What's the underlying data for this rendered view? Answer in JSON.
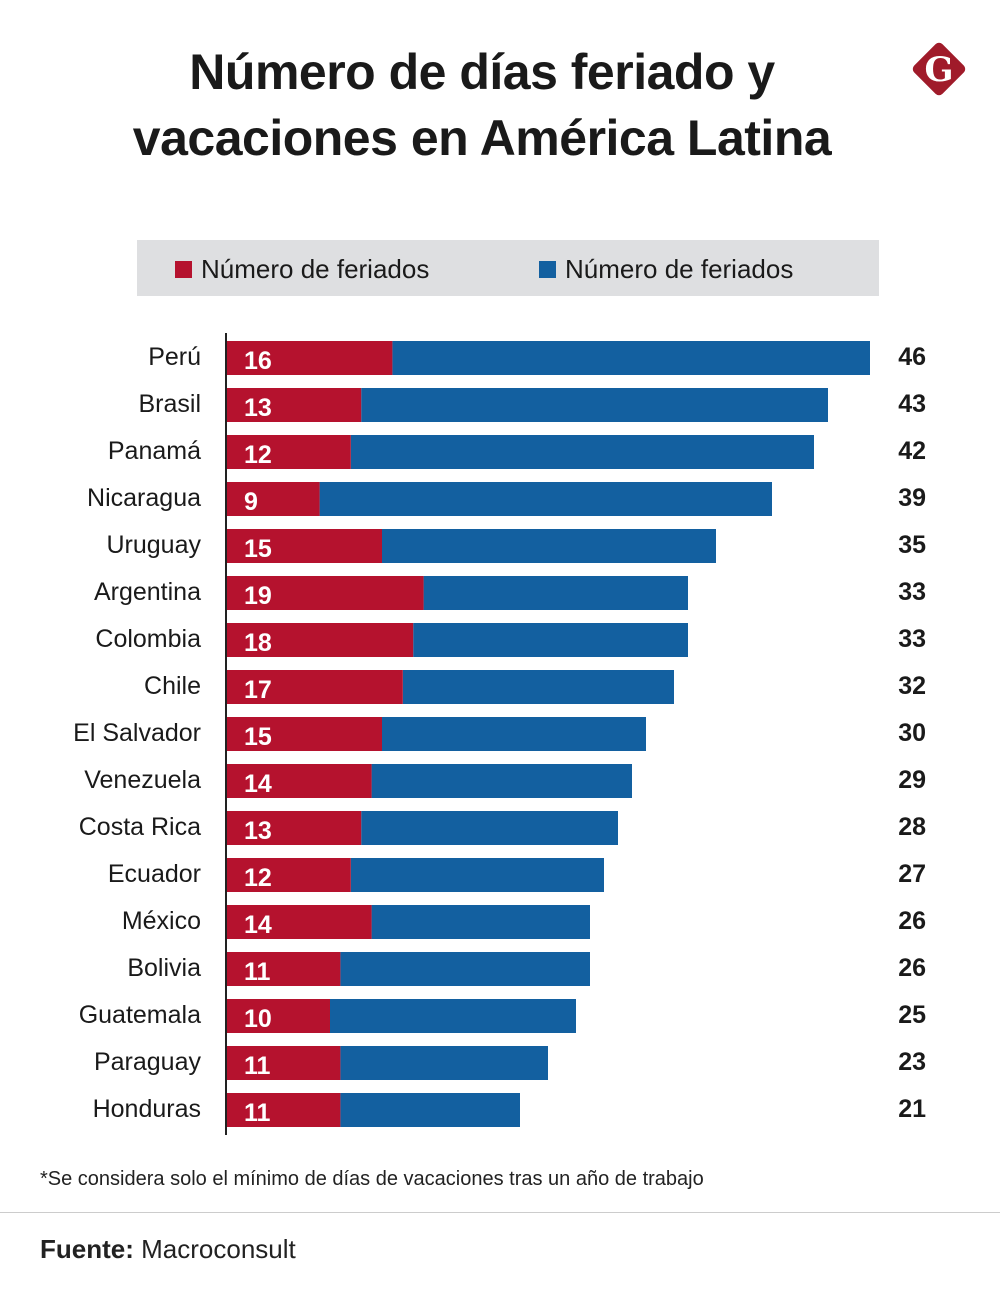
{
  "title_line1": "Número de días feriado y",
  "title_line2": "vacaciones en América Latina",
  "logo_text": "G",
  "footnote": "*Se considera solo el mínimo de días de vacaciones tras un año de trabajo",
  "source_label": "Fuente:",
  "source_value": "Macroconsult",
  "chart_data": {
    "type": "bar",
    "orientation": "horizontal",
    "stacked": true,
    "categories": [
      "Perú",
      "Brasil",
      "Panamá",
      "Nicaragua",
      "Uruguay",
      "Argentina",
      "Colombia",
      "Chile",
      "El Salvador",
      "Venezuela",
      "Costa Rica",
      "Ecuador",
      "México",
      "Bolivia",
      "Guatemala",
      "Paraguay",
      "Honduras"
    ],
    "series": [
      {
        "name": "Número de feriados",
        "color": "#b5122e",
        "values": [
          16,
          13,
          12,
          9,
          15,
          19,
          18,
          17,
          15,
          14,
          13,
          12,
          14,
          11,
          10,
          11,
          11
        ]
      },
      {
        "name": "Número de feriados",
        "color": "#1360a0",
        "values": [
          30,
          30,
          30,
          30,
          20,
          14,
          15,
          15,
          15,
          15,
          15,
          15,
          12,
          15,
          15,
          12,
          10
        ]
      }
    ],
    "totals": [
      46,
      43,
      42,
      39,
      35,
      33,
      33,
      32,
      30,
      29,
      28,
      27,
      26,
      26,
      25,
      23,
      21
    ],
    "legend": "top",
    "grid": false
  }
}
